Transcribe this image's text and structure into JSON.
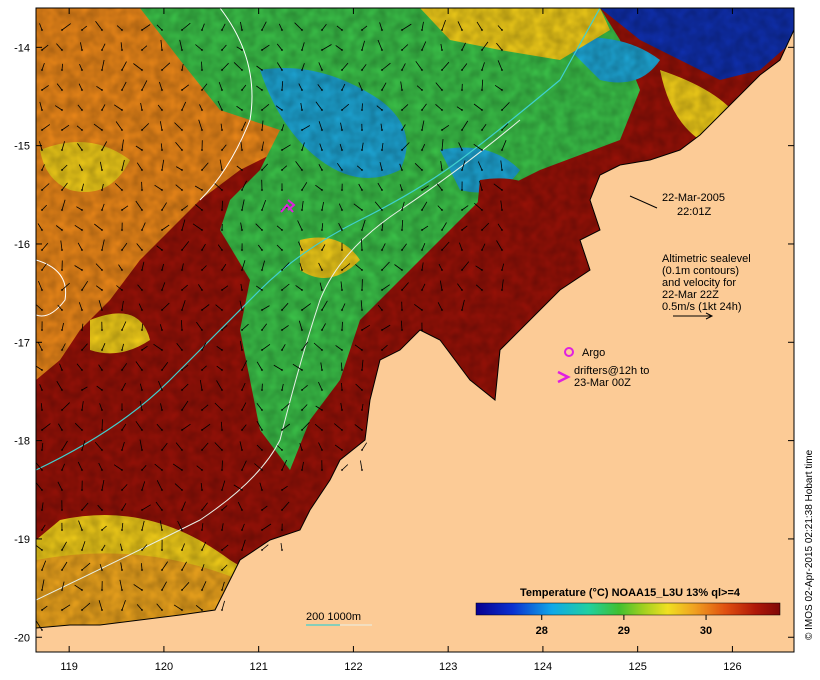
{
  "map": {
    "y_ticks": [
      "-14",
      "-15",
      "-16",
      "-17",
      "-18",
      "-19",
      "-20"
    ],
    "x_ticks": [
      "119",
      "120",
      "121",
      "122",
      "123",
      "124",
      "125",
      "126"
    ],
    "lat_range": [
      -20.15,
      -13.6
    ],
    "lon_range": [
      118.65,
      126.65
    ]
  },
  "annotations": {
    "date": "22-Mar-2005",
    "time": "22:01Z",
    "altimetry_lines": [
      "Altimetric sealevel",
      "(0.1m contours)",
      "and velocity for",
      "22-Mar 22Z",
      "0.5m/s (1kt 24h)"
    ],
    "argo_label": "Argo",
    "drifter_lines": [
      "drifters@12h to",
      "23-Mar 00Z"
    ],
    "bathy_label": "200  1000m"
  },
  "colorbar": {
    "title": "Temperature (°C) NOAA15_L3U 13% ql>=4",
    "ticks": [
      "28",
      "29",
      "30"
    ],
    "range": [
      27.2,
      30.9
    ],
    "tick_values": [
      28,
      29,
      30
    ]
  },
  "credit": "© IMOS 02-Apr-2015 02:21:38 Hobart time",
  "colors": {
    "land": "#fccb96",
    "warm": "#9a1208",
    "orange": "#f08a1a",
    "yellow": "#f5d01a",
    "green": "#3cc44a",
    "cyan": "#1ea8d8",
    "blue": "#1030b0",
    "contour": "#40d0d0",
    "argo": "#e020e0"
  }
}
